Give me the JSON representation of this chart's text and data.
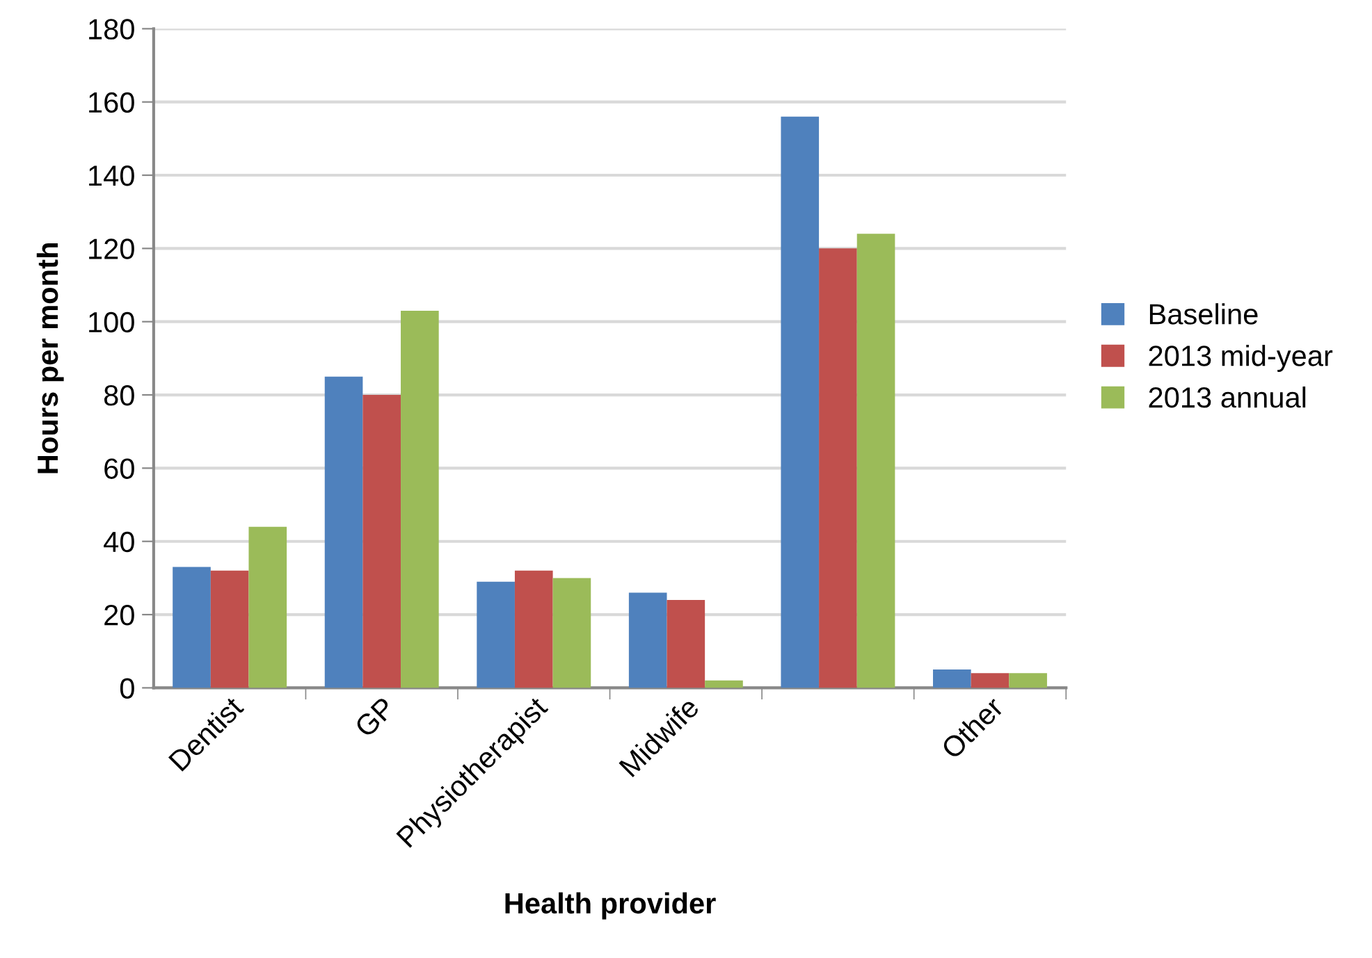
{
  "chart_data": {
    "type": "bar",
    "xlabel": "Health provider",
    "ylabel": "Hours per month",
    "categories": [
      "Dentist",
      "GP",
      "Physiotherapist",
      "Midwife",
      null,
      "Other"
    ],
    "series": [
      {
        "name": "Baseline",
        "color": "#4f81bd",
        "values": [
          33,
          85,
          29,
          26,
          156,
          5
        ]
      },
      {
        "name": "2013 mid-year",
        "color": "#c0504d",
        "values": [
          32,
          80,
          32,
          24,
          120,
          4
        ]
      },
      {
        "name": "2013 annual",
        "color": "#9bbb59",
        "values": [
          44,
          103,
          30,
          2,
          124,
          4
        ]
      }
    ],
    "ylim": [
      0,
      180
    ],
    "yticks": [
      0,
      20,
      40,
      60,
      80,
      100,
      120,
      140,
      160,
      180
    ],
    "grid": "y",
    "legend": "right"
  }
}
